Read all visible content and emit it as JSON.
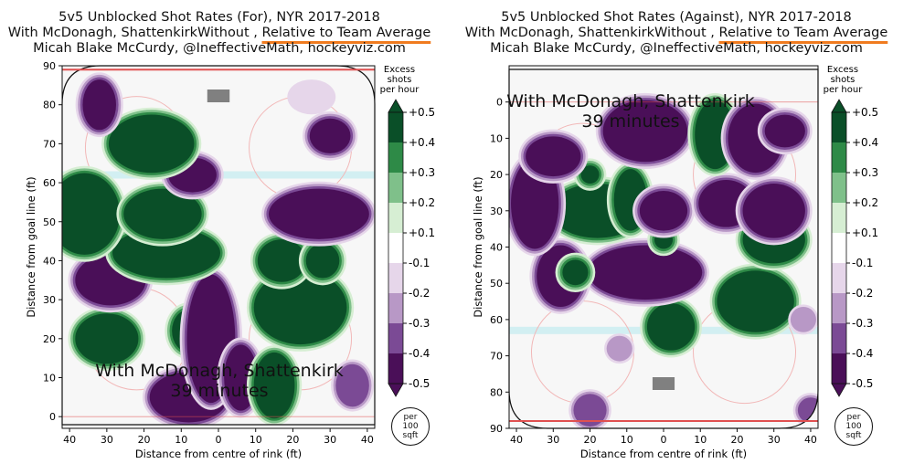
{
  "panels": [
    {
      "title_line1": "5v5 Unblocked Shot Rates (For), NYR 2017-2018",
      "title_line2_a": "With McDonagh, ShattenkirkWithout , ",
      "title_line2_b": "Relative to Team Average",
      "title_line3": "Micah Blake McCurdy, @IneffectiveMath, hockeyviz.com",
      "overlay_line1": "With McDonagh, Shattenkirk",
      "overlay_line2": "39 minutes",
      "xlabel": "Distance from centre of rink (ft)",
      "ylabel": "Distance from goal line (ft)",
      "colorbar_title": [
        "Excess",
        "shots",
        "per hour"
      ],
      "unit_badge": [
        "per",
        "100",
        "sqft"
      ]
    },
    {
      "title_line1": "5v5 Unblocked Shot Rates (Against), NYR 2017-2018",
      "title_line2_a": "With McDonagh, ShattenkirkWithout , ",
      "title_line2_b": "Relative to Team Average",
      "title_line3": "Micah Blake McCurdy, @IneffectiveMath, hockeyviz.com",
      "overlay_line1": "With McDonagh, Shattenkirk",
      "overlay_line2": "39 minutes",
      "xlabel": "Distance from centre of rink (ft)",
      "ylabel": "Distance from goal line (ft)",
      "colorbar_title": [
        "Excess",
        "shots",
        "per hour"
      ],
      "unit_badge": [
        "per",
        "100",
        "sqft"
      ]
    }
  ],
  "colors": {
    "dark_green": "#0a4f28",
    "mid_green": "#2e8a47",
    "light_green": "#7fc08a",
    "pale_green": "#d6eed3",
    "pale_purple": "#e6d6ea",
    "light_purple": "#b898c6",
    "mid_purple": "#7b4a95",
    "dark_purple": "#4a0f58",
    "background": "#f7f7f7",
    "goal_line": "#e05050",
    "blue_line": "#c8ecf0",
    "net": "#808080"
  },
  "chart_data": [
    {
      "type": "heatmap",
      "title": "5v5 Unblocked Shot Rates (For), NYR 2017-2018",
      "xlabel": "Distance from centre of rink (ft)",
      "ylabel": "Distance from goal line (ft)",
      "xlim": [
        -42,
        42
      ],
      "ylim": [
        90,
        -3
      ],
      "y_axis_inverted": true,
      "xticks": [
        40,
        30,
        20,
        10,
        0,
        10,
        20,
        30,
        40
      ],
      "yticks": [
        0,
        10,
        20,
        30,
        40,
        50,
        60,
        70,
        80,
        90
      ],
      "colorbar": {
        "title": "Excess shots per hour",
        "levels": [
          "+0.5",
          "+0.4",
          "+0.3",
          "+0.2",
          "+0.1",
          "-0.1",
          "-0.2",
          "-0.3",
          "-0.4",
          "-0.5"
        ]
      },
      "blobs": [
        {
          "x": -30,
          "y": 20,
          "rx": 8,
          "ry": 6,
          "v": 0.5
        },
        {
          "x": -29,
          "y": 35,
          "rx": 9,
          "ry": 6,
          "v": -0.5
        },
        {
          "x": -8,
          "y": 22,
          "rx": 4,
          "ry": 5,
          "v": 0.5
        },
        {
          "x": -8,
          "y": 5,
          "rx": 10,
          "ry": 6,
          "v": -0.5
        },
        {
          "x": -2,
          "y": 20,
          "rx": 6,
          "ry": 16,
          "v": -0.5
        },
        {
          "x": 6,
          "y": 10,
          "rx": 4,
          "ry": 8,
          "v": -0.5
        },
        {
          "x": 15,
          "y": 8,
          "rx": 5,
          "ry": 8,
          "v": 0.5
        },
        {
          "x": 22,
          "y": 28,
          "rx": 12,
          "ry": 9,
          "v": 0.5
        },
        {
          "x": 17,
          "y": 40,
          "rx": 6,
          "ry": 5,
          "v": 0.5
        },
        {
          "x": 28,
          "y": 40,
          "rx": 4,
          "ry": 4,
          "v": 0.5
        },
        {
          "x": 36,
          "y": 8,
          "rx": 4,
          "ry": 5,
          "v": -0.4
        },
        {
          "x": -14,
          "y": 42,
          "rx": 14,
          "ry": 6,
          "v": 0.5
        },
        {
          "x": -36,
          "y": 52,
          "rx": 9,
          "ry": 10,
          "v": 0.5
        },
        {
          "x": -15,
          "y": 52,
          "rx": 10,
          "ry": 6,
          "v": 0.5
        },
        {
          "x": -7,
          "y": 62,
          "rx": 6,
          "ry": 4,
          "v": -0.5
        },
        {
          "x": 27,
          "y": 52,
          "rx": 13,
          "ry": 6,
          "v": -0.5
        },
        {
          "x": -18,
          "y": 70,
          "rx": 11,
          "ry": 7,
          "v": 0.5
        },
        {
          "x": -32,
          "y": 80,
          "rx": 4,
          "ry": 6,
          "v": -0.5
        },
        {
          "x": 30,
          "y": 72,
          "rx": 5,
          "ry": 4,
          "v": -0.5
        },
        {
          "x": 25,
          "y": 82,
          "rx": 6,
          "ry": 4,
          "v": -0.2
        }
      ]
    },
    {
      "type": "heatmap",
      "title": "5v5 Unblocked Shot Rates (Against), NYR 2017-2018",
      "xlabel": "Distance from centre of rink (ft)",
      "ylabel": "Distance from goal line (ft)",
      "xlim": [
        -42,
        42
      ],
      "ylim": [
        -10,
        90
      ],
      "y_axis_inverted": false,
      "xticks": [
        40,
        30,
        20,
        10,
        0,
        10,
        20,
        30,
        40
      ],
      "yticks": [
        0,
        10,
        20,
        30,
        40,
        50,
        60,
        70,
        80,
        90
      ],
      "colorbar": {
        "title": "Excess shots per hour",
        "levels": [
          "+0.5",
          "+0.4",
          "+0.3",
          "+0.2",
          "+0.1",
          "-0.1",
          "-0.2",
          "-0.3",
          "-0.4",
          "-0.5"
        ]
      },
      "blobs": [
        {
          "x": -20,
          "y": 85,
          "rx": 4,
          "ry": 4,
          "v": -0.4
        },
        {
          "x": 40,
          "y": 85,
          "rx": 3,
          "ry": 3,
          "v": -0.4
        },
        {
          "x": -12,
          "y": 68,
          "rx": 3,
          "ry": 3,
          "v": -0.3
        },
        {
          "x": 2,
          "y": 62,
          "rx": 6,
          "ry": 6,
          "v": 0.5
        },
        {
          "x": -5,
          "y": 47,
          "rx": 15,
          "ry": 7,
          "v": -0.5
        },
        {
          "x": -28,
          "y": 48,
          "rx": 6,
          "ry": 8,
          "v": -0.5
        },
        {
          "x": -24,
          "y": 47,
          "rx": 3,
          "ry": 3,
          "v": 0.5
        },
        {
          "x": 25,
          "y": 55,
          "rx": 10,
          "ry": 8,
          "v": 0.5
        },
        {
          "x": 30,
          "y": 38,
          "rx": 8,
          "ry": 6,
          "v": 0.5
        },
        {
          "x": 0,
          "y": 38,
          "rx": 2,
          "ry": 2,
          "v": 0.5
        },
        {
          "x": -18,
          "y": 30,
          "rx": 12,
          "ry": 7,
          "v": 0.5
        },
        {
          "x": -9,
          "y": 27,
          "rx": 4,
          "ry": 8,
          "v": 0.5
        },
        {
          "x": 0,
          "y": 30,
          "rx": 6,
          "ry": 5,
          "v": -0.5
        },
        {
          "x": 17,
          "y": 28,
          "rx": 7,
          "ry": 6,
          "v": -0.5
        },
        {
          "x": 30,
          "y": 30,
          "rx": 8,
          "ry": 7,
          "v": -0.5
        },
        {
          "x": -35,
          "y": 28,
          "rx": 6,
          "ry": 12,
          "v": -0.5
        },
        {
          "x": -20,
          "y": 20,
          "rx": 2,
          "ry": 2,
          "v": 0.5
        },
        {
          "x": -30,
          "y": 15,
          "rx": 7,
          "ry": 5,
          "v": -0.5
        },
        {
          "x": -5,
          "y": 8,
          "rx": 11,
          "ry": 8,
          "v": -0.5
        },
        {
          "x": 14,
          "y": 9,
          "rx": 5,
          "ry": 9,
          "v": 0.5
        },
        {
          "x": 25,
          "y": 10,
          "rx": 7,
          "ry": 9,
          "v": -0.5
        },
        {
          "x": 33,
          "y": 8,
          "rx": 5,
          "ry": 4,
          "v": -0.5
        },
        {
          "x": 38,
          "y": 60,
          "rx": 3,
          "ry": 3,
          "v": -0.3
        }
      ]
    }
  ]
}
